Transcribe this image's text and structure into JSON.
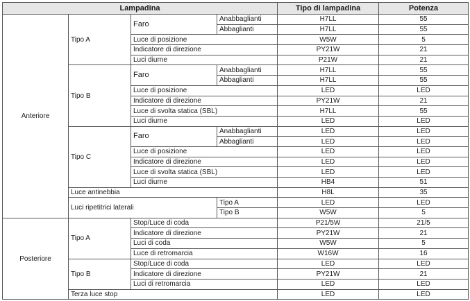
{
  "header": {
    "lampadina": "Lampadina",
    "tipo": "Tipo di lampadina",
    "potenza": "Potenza"
  },
  "anteriore": {
    "label": "Anteriore",
    "tipo_a": {
      "label": "Tipo A",
      "faro": "Faro",
      "anabbaglianti": {
        "label": "Anabbaglianti",
        "tipo": "H7LL",
        "potenza": "55"
      },
      "abbaglianti": {
        "label": "Abbaglianti",
        "tipo": "H7LL",
        "potenza": "55"
      },
      "posizione": {
        "label": "Luce di posizione",
        "tipo": "W5W",
        "potenza": "5"
      },
      "direzione": {
        "label": "Indicatore di direzione",
        "tipo": "PY21W",
        "potenza": "21"
      },
      "diurne": {
        "label": "Luci diurne",
        "tipo": "P21W",
        "potenza": "21"
      }
    },
    "tipo_b": {
      "label": "Tipo B",
      "faro": "Faro",
      "anabbaglianti": {
        "label": "Anabbaglianti",
        "tipo": "H7LL",
        "potenza": "55"
      },
      "abbaglianti": {
        "label": "Abbaglianti",
        "tipo": "H7LL",
        "potenza": "55"
      },
      "posizione": {
        "label": "Luce di posizione",
        "tipo": "LED",
        "potenza": "LED"
      },
      "direzione": {
        "label": "Indicatore di direzione",
        "tipo": "PY21W",
        "potenza": "21"
      },
      "svolta": {
        "label": "Luce di svolta statica (SBL)",
        "tipo": "H7LL",
        "potenza": "55"
      },
      "diurne": {
        "label": "Luci diurne",
        "tipo": "LED",
        "potenza": "LED"
      }
    },
    "tipo_c": {
      "label": "Tipo C",
      "faro": "Faro",
      "anabbaglianti": {
        "label": "Anabbaglianti",
        "tipo": "LED",
        "potenza": "LED"
      },
      "abbaglianti": {
        "label": "Abbaglianti",
        "tipo": "LED",
        "potenza": "LED"
      },
      "posizione": {
        "label": "Luce di posizione",
        "tipo": "LED",
        "potenza": "LED"
      },
      "direzione": {
        "label": "Indicatore di direzione",
        "tipo": "LED",
        "potenza": "LED"
      },
      "svolta": {
        "label": "Luce di svolta statica (SBL)",
        "tipo": "LED",
        "potenza": "LED"
      },
      "diurne": {
        "label": "Luci diurne",
        "tipo": "HB4",
        "potenza": "51"
      }
    },
    "antinebbia": {
      "label": "Luce antinebbia",
      "tipo": "H8L",
      "potenza": "35"
    },
    "ripetitrici": {
      "label": "Luci ripetitrici laterali",
      "tipo_a": {
        "label": "Tipo A",
        "tipo": "LED",
        "potenza": "LED"
      },
      "tipo_b": {
        "label": "Tipo B",
        "tipo": "W5W",
        "potenza": "5"
      }
    }
  },
  "posteriore": {
    "label": "Posteriore",
    "tipo_a": {
      "label": "Tipo A",
      "stop": {
        "label": "Stop/Luce di coda",
        "tipo": "P21/5W",
        "potenza": "21/5"
      },
      "direzione": {
        "label": "Indicatore di direzione",
        "tipo": "PY21W",
        "potenza": "21"
      },
      "coda": {
        "label": "Luci di coda",
        "tipo": "W5W",
        "potenza": "5"
      },
      "retromarcia": {
        "label": "Luce di retromarcia",
        "tipo": "W16W",
        "potenza": "16"
      }
    },
    "tipo_b": {
      "label": "Tipo B",
      "stop": {
        "label": "Stop/Luce di coda",
        "tipo": "LED",
        "potenza": "LED"
      },
      "direzione": {
        "label": "Indicatore di direzione",
        "tipo": "PY21W",
        "potenza": "21"
      },
      "retromarcia": {
        "label": "Luci di retromarcia",
        "tipo": "LED",
        "potenza": "LED"
      }
    },
    "terza": {
      "label": "Terza luce stop",
      "tipo": "LED",
      "potenza": "LED"
    }
  }
}
